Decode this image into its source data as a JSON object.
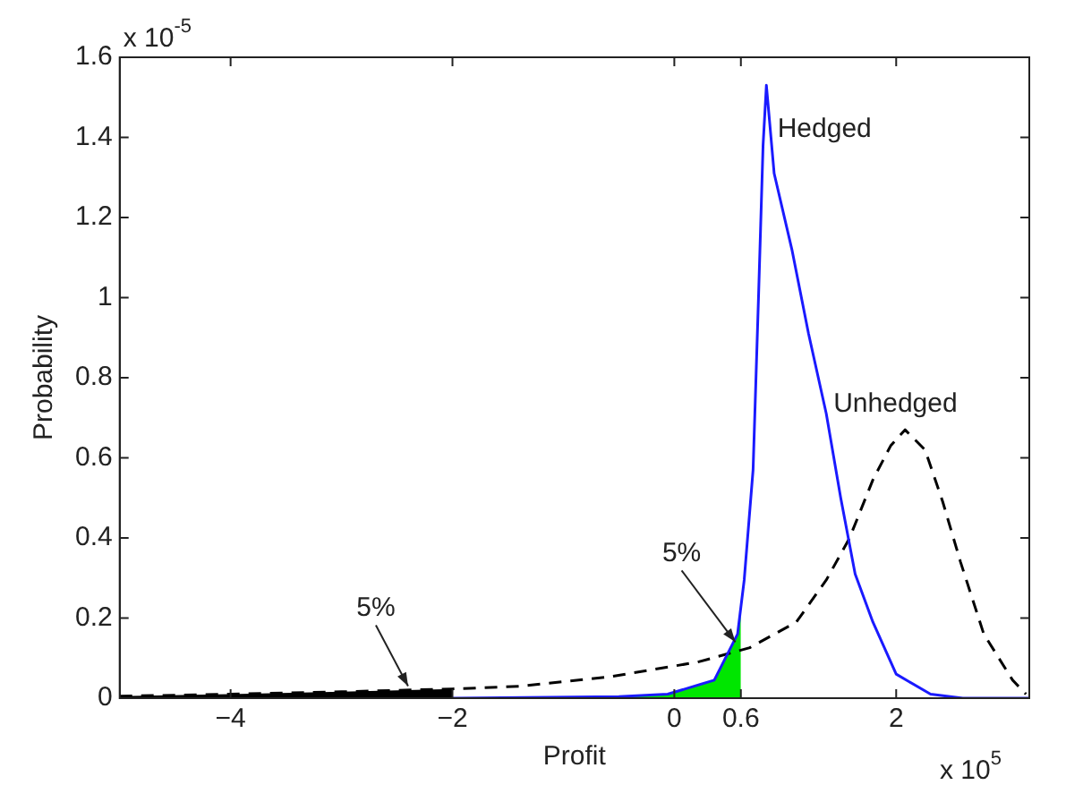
{
  "chart_data": {
    "type": "line",
    "xlabel": "Profit",
    "ylabel": "Probability",
    "xlim": [
      -5,
      3.2
    ],
    "xticks": [
      -4,
      -2,
      0,
      0.6,
      2
    ],
    "ylim": [
      0,
      1.6
    ],
    "yticks": [
      0,
      0.2,
      0.4,
      0.6,
      0.8,
      1,
      1.2,
      1.4,
      1.6
    ],
    "grid": false,
    "legend": false,
    "marker": "none",
    "series": [
      {
        "type": "area",
        "color": "#000000",
        "x": [
          -5,
          -4,
          -3,
          -2
        ],
        "values": [
          0.005,
          0.01,
          0.016,
          0.023
        ]
      },
      {
        "type": "area",
        "color": "#00e600",
        "x": [
          -0.5,
          -0.06,
          0.36,
          0.57,
          0.6
        ],
        "values": [
          0.004,
          0.01,
          0.045,
          0.16,
          0.23
        ]
      },
      {
        "color": "#000000",
        "line_style": "dashed",
        "x": [
          -5,
          -4,
          -3,
          -2,
          -1.38,
          -0.59,
          0.21,
          0.68,
          1.1,
          1.37,
          1.58,
          1.79,
          1.95,
          2.08,
          2.26,
          2.42,
          2.58,
          2.79,
          3.05,
          3.17
        ],
        "values": [
          0.005,
          0.01,
          0.016,
          0.023,
          0.03,
          0.053,
          0.09,
          0.126,
          0.19,
          0.295,
          0.4,
          0.545,
          0.63,
          0.67,
          0.62,
          0.49,
          0.34,
          0.16,
          0.045,
          0.01
        ]
      },
      {
        "color": "#1a1aff",
        "line_style": "solid",
        "x": [
          -2,
          -0.5,
          -0.06,
          0.36,
          0.57,
          0.63,
          0.71,
          0.76,
          0.8,
          0.83,
          0.9,
          1.06,
          1.21,
          1.37,
          1.5,
          1.63,
          1.79,
          2,
          2.31,
          2.6,
          3.2
        ],
        "values": [
          0,
          0.004,
          0.01,
          0.045,
          0.16,
          0.295,
          0.57,
          1.01,
          1.38,
          1.53,
          1.31,
          1.12,
          0.91,
          0.71,
          0.5,
          0.31,
          0.19,
          0.06,
          0.01,
          0,
          0
        ]
      }
    ],
    "annotations": [
      {
        "text": "Hedged",
        "x": 0.93,
        "y": 1.42
      },
      {
        "text": "Unhedged",
        "x": 2.08,
        "y": 0.67
      },
      {
        "text": "5%",
        "x": -2.4,
        "y": 0.03
      },
      {
        "text": "5%",
        "x": 0.55,
        "y": 0.14
      },
      "x 10$^{-5}$",
      "x 10$^{5}$"
    ]
  }
}
